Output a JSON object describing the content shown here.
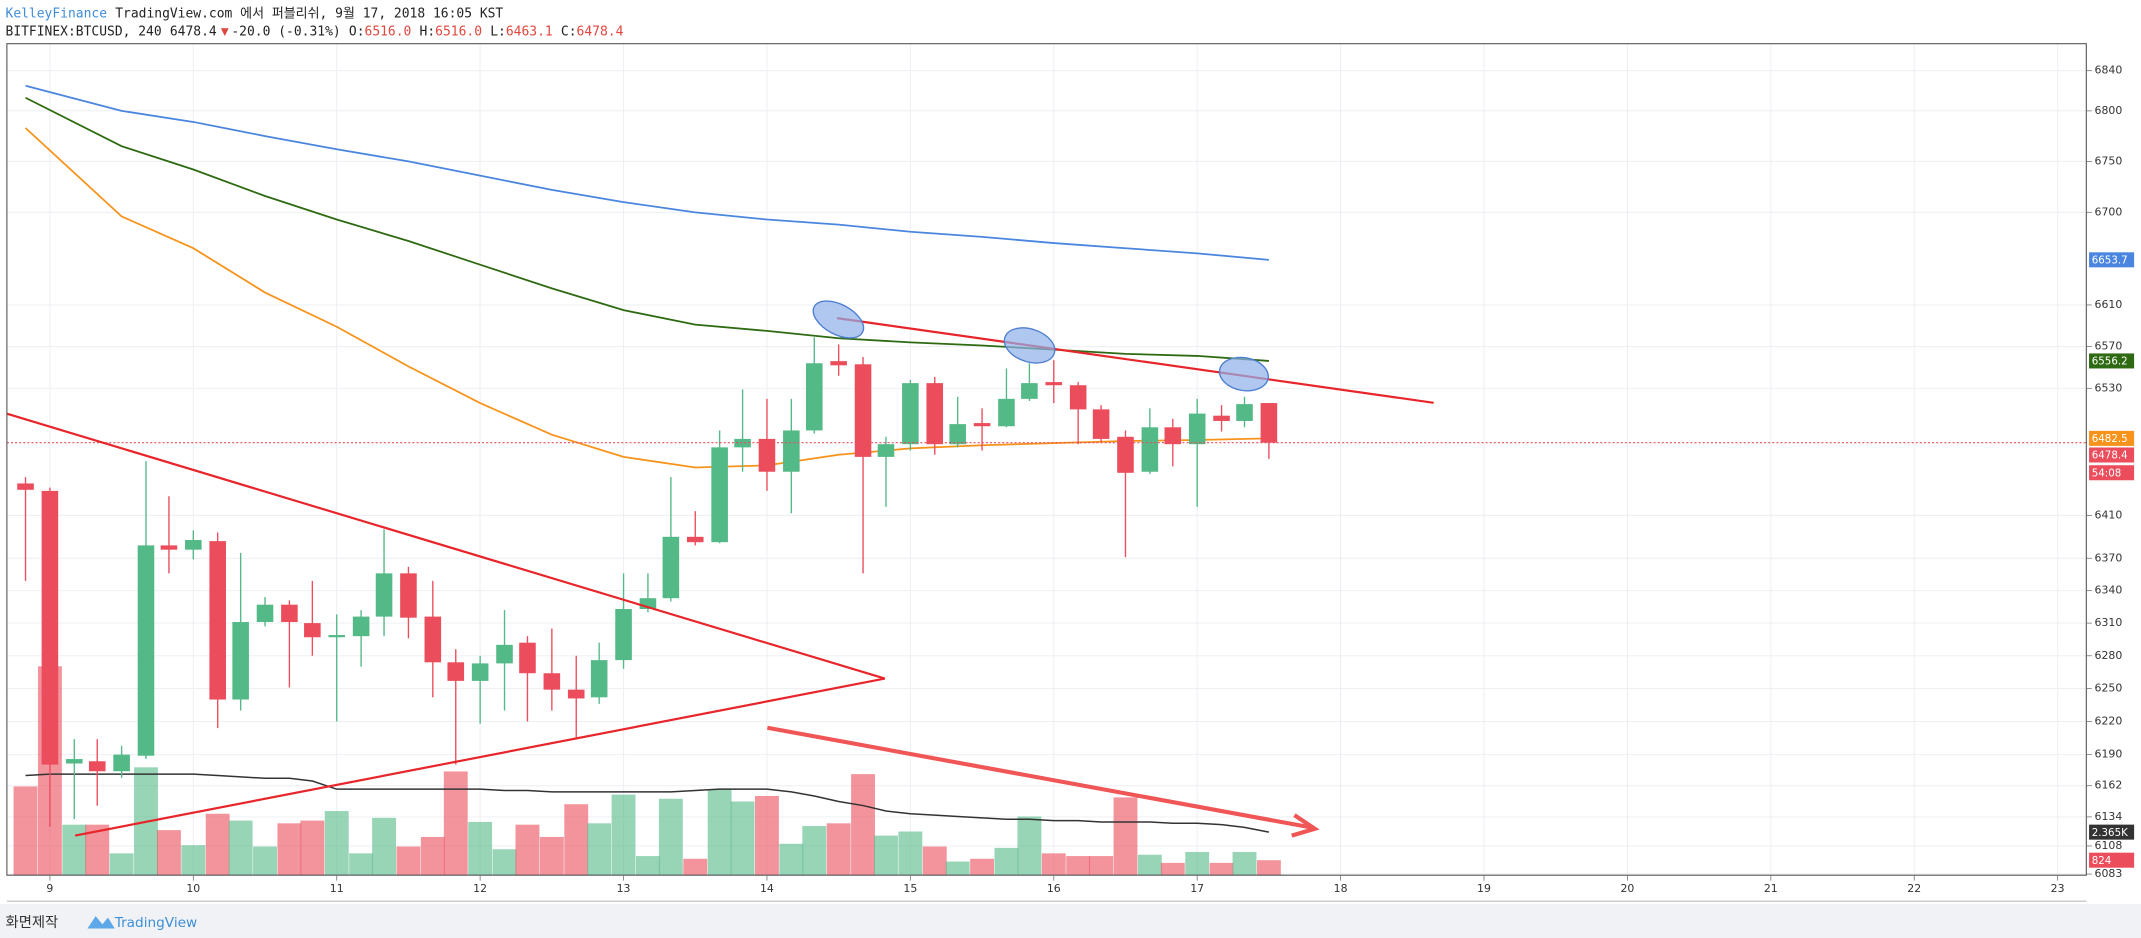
{
  "header": {
    "author": "KelleyFinance",
    "published": "TradingView.com 에서 퍼블리쉬, 9월 17, 2018 16:05 KST",
    "symbol": "BITFINEX:BTCUSD, 240",
    "last": "6478.4",
    "arrow": "▼",
    "change": "-20.0 (-0.31%)",
    "ohlc": [
      {
        "label": "O:",
        "value": "6516.0"
      },
      {
        "label": "H:",
        "value": "6516.0"
      },
      {
        "label": "L:",
        "value": "6463.1"
      },
      {
        "label": "C:",
        "value": "6478.4"
      }
    ]
  },
  "footer": {
    "caption": "화면제작",
    "brand": "TradingView"
  },
  "chart_data": {
    "type": "candlestick",
    "log_scale": true,
    "grid": true,
    "up_color": "#53b987",
    "down_color": "#eb4d5c",
    "xlim": [
      8.7,
      23.2
    ],
    "xticks": [
      9,
      10,
      11,
      12,
      13,
      14,
      15,
      16,
      17,
      18,
      19,
      20,
      21,
      22,
      23
    ],
    "ylim": [
      6082,
      6867
    ],
    "yticks": [
      6840,
      6800,
      6750,
      6700,
      6610,
      6570,
      6530,
      6410,
      6370,
      6340,
      6310,
      6280,
      6250,
      6220,
      6190,
      6162,
      6134,
      6108,
      6083
    ],
    "x": [
      8.83,
      9,
      9.17,
      9.33,
      9.5,
      9.67,
      9.83,
      10,
      10.17,
      10.33,
      10.5,
      10.67,
      10.83,
      11,
      11.17,
      11.33,
      11.5,
      11.67,
      11.83,
      12,
      12.17,
      12.33,
      12.5,
      12.67,
      12.83,
      13,
      13.17,
      13.33,
      13.5,
      13.67,
      13.83,
      14,
      14.17,
      14.33,
      14.5,
      14.67,
      14.83,
      15,
      15.17,
      15.33,
      15.5,
      15.67,
      15.83,
      16,
      16.17,
      16.33,
      16.5,
      16.67,
      16.83,
      17,
      17.17,
      17.33,
      17.5
    ],
    "candles": {
      "open": [
        6440,
        6433,
        6182,
        6184,
        6175,
        6189,
        6382,
        6378,
        6386,
        6240,
        6311,
        6327,
        6310,
        6297,
        6298,
        6316,
        6356,
        6316,
        6274,
        6257,
        6273,
        6292,
        6264,
        6249,
        6242,
        6276,
        6323,
        6333,
        6390,
        6385,
        6474,
        6482,
        6451,
        6490,
        6556,
        6553,
        6465,
        6477,
        6535,
        6477,
        6497,
        6494,
        6520,
        6536,
        6533,
        6510,
        6484,
        6451,
        6493,
        6477,
        6504,
        6499,
        6516.0
      ],
      "high": [
        6446,
        6436,
        6204,
        6204,
        6198,
        6461,
        6428,
        6396,
        6394,
        6375,
        6334,
        6331,
        6349,
        6318,
        6322,
        6397,
        6362,
        6349,
        6286,
        6280,
        6322,
        6298,
        6305,
        6280,
        6292,
        6356,
        6356,
        6446,
        6414,
        6490,
        6529,
        6520,
        6520,
        6579,
        6572,
        6560,
        6484,
        6538,
        6541,
        6522,
        6511,
        6549,
        6554,
        6557,
        6536,
        6514,
        6490,
        6511,
        6501,
        6520,
        6514,
        6522,
        6516.0
      ],
      "low": [
        6349,
        6125,
        6132,
        6144,
        6169,
        6186,
        6356,
        6369,
        6214,
        6230,
        6307,
        6251,
        6280,
        6220,
        6270,
        6298,
        6296,
        6242,
        6181,
        6218,
        6230,
        6220,
        6230,
        6205,
        6236,
        6268,
        6320,
        6330,
        6382,
        6384,
        6451,
        6433,
        6412,
        6487,
        6542,
        6356,
        6418,
        6471,
        6467,
        6474,
        6471,
        6493,
        6518,
        6516,
        6477,
        6479,
        6371,
        6449,
        6456,
        6418,
        6489,
        6493,
        6463.1
      ],
      "close": [
        6434,
        6181,
        6186,
        6175,
        6190,
        6382,
        6378,
        6387,
        6240,
        6311,
        6327,
        6311,
        6297,
        6299,
        6316,
        6356,
        6315,
        6274,
        6257,
        6273,
        6290,
        6264,
        6249,
        6241,
        6276,
        6323,
        6333,
        6390,
        6385,
        6474,
        6482,
        6451,
        6490,
        6554,
        6552,
        6465,
        6477,
        6535,
        6477,
        6496,
        6494,
        6520,
        6535,
        6533,
        6510,
        6482,
        6450,
        6493,
        6477,
        6506,
        6499,
        6515,
        6478.4
      ]
    },
    "countdown": "54:08",
    "lines": [
      {
        "color": "#4a86e0",
        "x": [
          8.83,
          9.5,
          10,
          10.5,
          11,
          11.5,
          12,
          12.5,
          13,
          13.5,
          14,
          14.5,
          15,
          15.5,
          16,
          16.5,
          17,
          17.5
        ],
        "values": [
          6825,
          6800,
          6789,
          6775,
          6762,
          6750,
          6736,
          6722,
          6710,
          6700,
          6693,
          6688,
          6681,
          6676,
          6670,
          6665,
          6660,
          6653.7
        ]
      },
      {
        "color": "#2e6a12",
        "x": [
          8.83,
          9.5,
          10,
          10.5,
          11,
          11.5,
          12,
          12.5,
          13,
          13.5,
          14,
          14.5,
          15,
          15.5,
          16,
          16.5,
          17,
          17.5
        ],
        "values": [
          6813,
          6765,
          6742,
          6716,
          6693,
          6672,
          6649,
          6626,
          6605,
          6591,
          6585,
          6578,
          6574,
          6571,
          6567,
          6563,
          6561,
          6556.2
        ]
      },
      {
        "color": "#f7931a",
        "x": [
          8.83,
          9.5,
          10,
          10.5,
          11,
          11.5,
          12,
          12.5,
          13,
          13.5,
          14,
          14.5,
          15,
          15.5,
          16,
          16.5,
          17,
          17.5
        ],
        "values": [
          6783,
          6696,
          6665,
          6622,
          6589,
          6551,
          6516,
          6486,
          6465,
          6455,
          6457,
          6467,
          6473,
          6476,
          6478,
          6480,
          6481,
          6482.5
        ]
      }
    ],
    "volume": {
      "ylim": [
        0,
        45675
      ],
      "values": [
        4875,
        11475,
        2775,
        2775,
        1200,
        5925,
        2475,
        1650,
        3375,
        3000,
        1575,
        2850,
        3000,
        3525,
        1200,
        3150,
        1575,
        2100,
        5700,
        2925,
        1425,
        2775,
        2100,
        3900,
        2850,
        4425,
        1050,
        4200,
        900,
        4725,
        4050,
        4350,
        1725,
        2700,
        2850,
        5550,
        2175,
        2400,
        1575,
        750,
        900,
        1500,
        3225,
        1200,
        1050,
        1050,
        4275,
        1125,
        675,
        1275,
        675,
        1275,
        824
      ],
      "ma": {
        "color": "#333333",
        "last_label": "2.365K",
        "values": [
          5475,
          5550,
          5550,
          5550,
          5550,
          5550,
          5550,
          5550,
          5475,
          5400,
          5325,
          5325,
          5175,
          4725,
          4725,
          4725,
          4725,
          4725,
          4725,
          4725,
          4650,
          4650,
          4575,
          4575,
          4575,
          4575,
          4575,
          4575,
          4650,
          4725,
          4725,
          4725,
          4575,
          4350,
          4050,
          3825,
          3525,
          3375,
          3300,
          3225,
          3150,
          3075,
          3075,
          3000,
          3000,
          2925,
          2925,
          2925,
          2850,
          2850,
          2775,
          2625,
          2365
        ]
      }
    }
  }
}
